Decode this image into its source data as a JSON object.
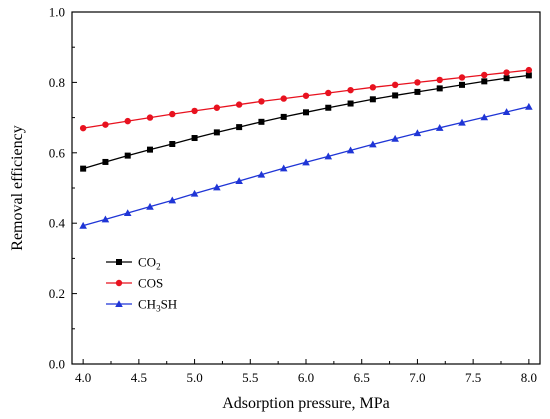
{
  "chart_data": {
    "type": "line",
    "xlabel": "Adsorption pressure, MPa",
    "ylabel": "Removal efficiency",
    "xlim": [
      3.9,
      8.1
    ],
    "ylim": [
      0.0,
      1.0
    ],
    "xticks": [
      "4.0",
      "4.5",
      "5.0",
      "5.5",
      "6.0",
      "6.5",
      "7.0",
      "7.5",
      "8.0"
    ],
    "yticks": [
      "0.0",
      "0.2",
      "0.4",
      "0.6",
      "0.8",
      "1.0"
    ],
    "grid": false,
    "legend_position": "middle-left",
    "x": [
      4.0,
      4.2,
      4.4,
      4.6,
      4.8,
      5.0,
      5.2,
      5.4,
      5.6,
      5.8,
      6.0,
      6.2,
      6.4,
      6.6,
      6.8,
      7.0,
      7.2,
      7.4,
      7.6,
      7.8,
      8.0
    ],
    "series": [
      {
        "name": "CO₂",
        "legend_parts": [
          {
            "text": "CO",
            "sub": false
          },
          {
            "text": "2",
            "sub": true
          }
        ],
        "color": "#000000",
        "marker": "square",
        "values": [
          0.555,
          0.574,
          0.592,
          0.609,
          0.625,
          0.642,
          0.658,
          0.673,
          0.688,
          0.702,
          0.715,
          0.728,
          0.74,
          0.752,
          0.763,
          0.773,
          0.783,
          0.793,
          0.803,
          0.812,
          0.82
        ]
      },
      {
        "name": "COS",
        "legend_parts": [
          {
            "text": "COS",
            "sub": false
          }
        ],
        "color": "#e8121f",
        "marker": "circle",
        "values": [
          0.67,
          0.68,
          0.69,
          0.7,
          0.71,
          0.719,
          0.728,
          0.737,
          0.746,
          0.754,
          0.762,
          0.77,
          0.778,
          0.786,
          0.793,
          0.8,
          0.807,
          0.814,
          0.821,
          0.828,
          0.835
        ]
      },
      {
        "name": "CH₃SH",
        "legend_parts": [
          {
            "text": "CH",
            "sub": false
          },
          {
            "text": "3",
            "sub": true
          },
          {
            "text": "SH",
            "sub": false
          }
        ],
        "color": "#1f35d6",
        "marker": "triangle",
        "values": [
          0.393,
          0.411,
          0.429,
          0.447,
          0.465,
          0.484,
          0.502,
          0.52,
          0.538,
          0.556,
          0.573,
          0.59,
          0.607,
          0.624,
          0.64,
          0.656,
          0.671,
          0.686,
          0.701,
          0.716,
          0.731
        ]
      }
    ]
  }
}
